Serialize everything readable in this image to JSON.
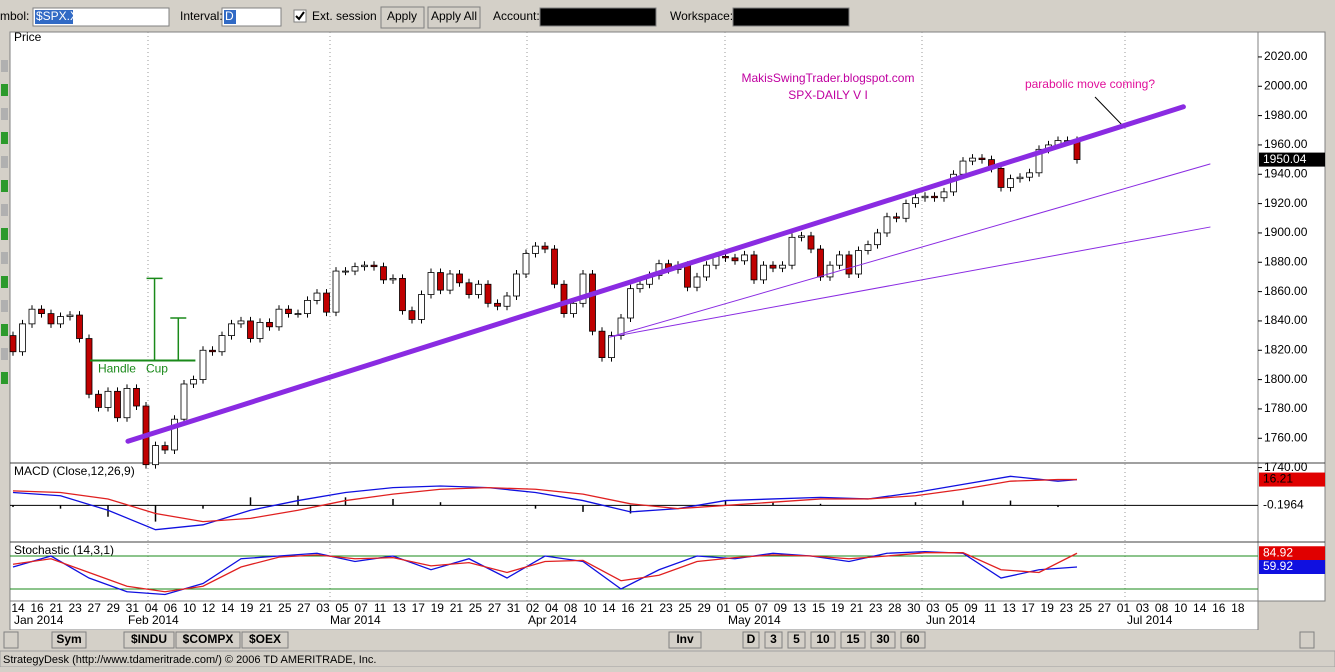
{
  "toolbar": {
    "symbol_label": "mbol:",
    "symbol": "$SPX.X",
    "interval_label": "Interval:",
    "interval": "D",
    "ext_session": "Ext. session",
    "apply": "Apply",
    "apply_all": "Apply All",
    "account_label": "Account:",
    "workspace_label": "Workspace:"
  },
  "chart_data": [
    {
      "type": "candlestick",
      "title": "Price",
      "open": [
        1830,
        1819,
        1838,
        1848,
        1845,
        1838,
        1843,
        1844,
        1828,
        1790,
        1781,
        1792,
        1774,
        1794,
        1782,
        1742,
        1755,
        1752,
        1773,
        1797,
        1800,
        1820,
        1819,
        1830,
        1838,
        1840,
        1828,
        1839,
        1836,
        1848,
        1845,
        1845,
        1854,
        1859,
        1846,
        1874,
        1874,
        1877,
        1878,
        1877,
        1868,
        1869,
        1847,
        1841,
        1858,
        1873,
        1861,
        1872,
        1866,
        1858,
        1865,
        1852,
        1850,
        1857,
        1872,
        1886,
        1891,
        1889,
        1865,
        1845,
        1852,
        1872,
        1833,
        1815,
        1830,
        1842,
        1862,
        1865,
        1871,
        1879,
        1875,
        1878,
        1863,
        1870,
        1878,
        1884,
        1883,
        1881,
        1885,
        1868,
        1878,
        1876,
        1878,
        1897,
        1898,
        1889,
        1870,
        1878,
        1885,
        1872,
        1888,
        1892,
        1900,
        1911,
        1910,
        1920,
        1924,
        1925,
        1924,
        1928,
        1940,
        1949,
        1951,
        1950,
        1944,
        1931,
        1937,
        1938,
        1941,
        1957,
        1960,
        1963,
        1963
      ],
      "close": [
        1819,
        1838,
        1848,
        1845,
        1838,
        1843,
        1844,
        1828,
        1790,
        1781,
        1792,
        1774,
        1794,
        1782,
        1742,
        1755,
        1752,
        1773,
        1797,
        1800,
        1820,
        1819,
        1830,
        1838,
        1840,
        1828,
        1839,
        1836,
        1848,
        1845,
        1845,
        1854,
        1859,
        1846,
        1874,
        1874,
        1877,
        1878,
        1877,
        1868,
        1869,
        1847,
        1841,
        1858,
        1873,
        1861,
        1872,
        1866,
        1858,
        1865,
        1852,
        1850,
        1857,
        1872,
        1886,
        1891,
        1889,
        1865,
        1845,
        1852,
        1872,
        1833,
        1815,
        1830,
        1842,
        1862,
        1865,
        1871,
        1879,
        1875,
        1878,
        1863,
        1870,
        1878,
        1884,
        1883,
        1881,
        1885,
        1868,
        1878,
        1876,
        1878,
        1897,
        1898,
        1889,
        1870,
        1878,
        1885,
        1872,
        1888,
        1892,
        1900,
        1911,
        1910,
        1920,
        1924,
        1925,
        1924,
        1928,
        1940,
        1949,
        1951,
        1950,
        1944,
        1931,
        1937,
        1938,
        1941,
        1957,
        1960,
        1963,
        1963,
        1950
      ],
      "up_color": "#ffffff",
      "down_color": "#c00000",
      "ylim": [
        1737,
        2037
      ],
      "yticks": [
        {
          "value": 1740,
          "label": "1740.00"
        },
        {
          "value": 1760,
          "label": "1760.00"
        },
        {
          "value": 1780,
          "label": "1780.00"
        },
        {
          "value": 1800,
          "label": "1800.00"
        },
        {
          "value": 1820,
          "label": "1820.00"
        },
        {
          "value": 1840,
          "label": "1840.00"
        },
        {
          "value": 1860,
          "label": "1860.00"
        },
        {
          "value": 1880,
          "label": "1880.00"
        },
        {
          "value": 1900,
          "label": "1900.00"
        },
        {
          "value": 1920,
          "label": "1920.00"
        },
        {
          "value": 1940,
          "label": "1940.00"
        },
        {
          "value": 1960,
          "label": "1960.00"
        },
        {
          "value": 1980,
          "label": "1980.00"
        },
        {
          "value": 2000,
          "label": "2000.00"
        },
        {
          "value": 2020,
          "label": "2020.00"
        }
      ],
      "last_label": "1950.04",
      "trendlines": [
        {
          "x": [
            12.1,
            123.2
          ],
          "y": [
            1758,
            1986
          ],
          "color": "#8a2be2",
          "width": 5
        },
        {
          "x": [
            62.8,
            126
          ],
          "y": [
            1829,
            1947
          ],
          "color": "#8a2be2",
          "width": 1
        },
        {
          "x": [
            62.8,
            126
          ],
          "y": [
            1829,
            1904
          ],
          "color": "#8a2be2",
          "width": 1
        }
      ],
      "cup_handle": {
        "color": "#1a8a1a",
        "base": {
          "x": [
            8.1,
            19.2
          ],
          "y": 1813
        },
        "cup": {
          "x": 14.9,
          "y": 1869
        },
        "handle": {
          "x": 17.4,
          "y": 1842
        },
        "labels": [
          "Handle",
          "Cup"
        ]
      },
      "annotations": [
        "MakisSwingTrader.blogspot.com",
        "SPX-DAILY  V I",
        "parabolic move coming?"
      ]
    },
    {
      "type": "line",
      "title": "MACD (Close,12,26,9)",
      "x": [
        0,
        5,
        10,
        15,
        20,
        25,
        30,
        35,
        40,
        45,
        50,
        55,
        60,
        65,
        70,
        75,
        80,
        85,
        90,
        95,
        100,
        105,
        110,
        112
      ],
      "series": [
        {
          "color": "#1010e0",
          "values": [
            8,
            6,
            -3,
            -15,
            -12,
            -3,
            3,
            8,
            11,
            12,
            11,
            8,
            3,
            -4,
            -2,
            3,
            4,
            5,
            4,
            8,
            13,
            18,
            15,
            16
          ]
        },
        {
          "color": "#e02020",
          "values": [
            9,
            8,
            4,
            -5,
            -10,
            -8,
            -3,
            3,
            7,
            10,
            11,
            10,
            7,
            1,
            -2,
            0,
            2,
            4,
            4,
            6,
            10,
            15,
            16,
            16
          ]
        }
      ],
      "histogram": [
        -1,
        -2,
        -7,
        -10,
        -2,
        5,
        6,
        5,
        4,
        2,
        0,
        -2,
        -4,
        -5,
        0,
        3,
        2,
        1,
        0,
        2,
        3,
        3,
        -1,
        0
      ],
      "ylim": [
        -22,
        25
      ],
      "zero": 0,
      "value_labels": [
        "16.21",
        "-0.1964"
      ]
    },
    {
      "type": "line",
      "title": "Stochastic (14,3,1)",
      "x": [
        0,
        4,
        8,
        12,
        16,
        20,
        24,
        28,
        32,
        36,
        40,
        44,
        48,
        52,
        56,
        60,
        64,
        68,
        72,
        76,
        80,
        84,
        88,
        92,
        96,
        100,
        104,
        108,
        112
      ],
      "series": [
        {
          "color": "#1010e0",
          "values": [
            60,
            80,
            40,
            15,
            10,
            30,
            75,
            80,
            85,
            70,
            80,
            55,
            75,
            40,
            80,
            70,
            20,
            55,
            80,
            75,
            85,
            80,
            70,
            85,
            88,
            85,
            40,
            55,
            60
          ]
        },
        {
          "color": "#e02020",
          "values": [
            65,
            75,
            50,
            25,
            15,
            25,
            60,
            78,
            82,
            75,
            77,
            62,
            68,
            50,
            70,
            72,
            35,
            45,
            70,
            77,
            82,
            80,
            75,
            80,
            86,
            86,
            55,
            50,
            85
          ]
        }
      ],
      "ylim": [
        0,
        100
      ],
      "levels": [
        80,
        20
      ],
      "level_color": "#1a8a1a",
      "value_labels": [
        "84.92",
        "59.92"
      ]
    }
  ],
  "date_axis": {
    "days": [
      "14",
      "16",
      "21",
      "23",
      "27",
      "29",
      "31",
      "04",
      "06",
      "10",
      "12",
      "14",
      "19",
      "21",
      "25",
      "27",
      "03",
      "05",
      "07",
      "11",
      "13",
      "17",
      "19",
      "21",
      "25",
      "27",
      "31",
      "02",
      "04",
      "08",
      "10",
      "14",
      "16",
      "21",
      "23",
      "25",
      "29",
      "01",
      "05",
      "07",
      "09",
      "13",
      "15",
      "19",
      "21",
      "23",
      "28",
      "30",
      "03",
      "05",
      "09",
      "11",
      "13",
      "17",
      "19",
      "23",
      "25",
      "27",
      "01",
      "03",
      "08",
      "10",
      "14",
      "16",
      "18"
    ],
    "months": [
      "Jan 2014",
      "Feb 2014",
      "Mar 2014",
      "Apr 2014",
      "May 2014",
      "Jun 2014",
      "Jul 2014"
    ]
  },
  "tabs": {
    "symbols": [
      "Sym",
      "$INDU",
      "$COMPX",
      "$OEX"
    ],
    "inv": "Inv",
    "intervals": [
      "D",
      "3",
      "5",
      "10",
      "15",
      "30",
      "60"
    ]
  },
  "status": "StrategyDesk (http://www.tdameritrade.com/) © 2006 TD AMERITRADE, Inc."
}
